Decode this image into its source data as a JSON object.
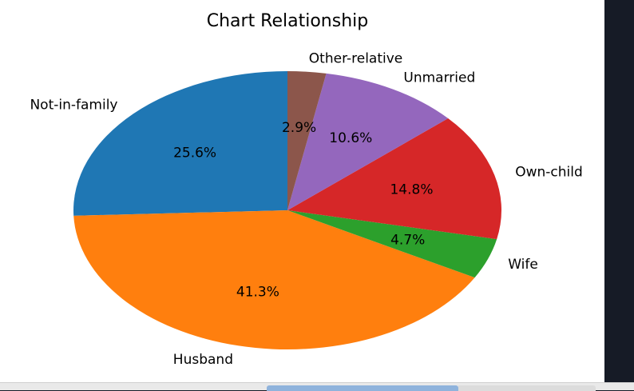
{
  "chart_data": {
    "type": "pie",
    "title": "Chart Relationship",
    "slices": [
      {
        "label": "Not-in-family",
        "value": 25.6,
        "pct_label": "25.6%",
        "color": "#1f77b4"
      },
      {
        "label": "Husband",
        "value": 41.3,
        "pct_label": "41.3%",
        "color": "#ff7f0e"
      },
      {
        "label": "Wife",
        "value": 4.7,
        "pct_label": "4.7%",
        "color": "#2ca02c"
      },
      {
        "label": "Own-child",
        "value": 14.8,
        "pct_label": "14.8%",
        "color": "#d62728"
      },
      {
        "label": "Unmarried",
        "value": 10.6,
        "pct_label": "10.6%",
        "color": "#9467bd"
      },
      {
        "label": "Other-relative",
        "value": 2.9,
        "pct_label": "2.9%",
        "color": "#8c564b"
      }
    ],
    "start_angle_deg": 90,
    "direction": "counterclockwise",
    "legend": "none"
  }
}
